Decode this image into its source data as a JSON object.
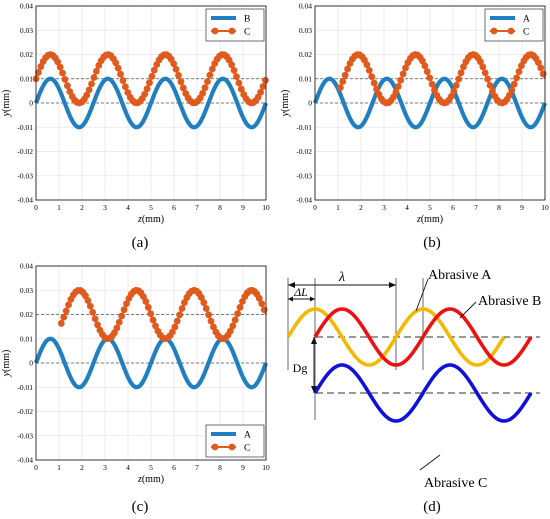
{
  "chart_data": [
    {
      "type": "line",
      "panel_label": "(a)",
      "xlabel": "z(mm)",
      "ylabel": "y(mm)",
      "xlim": [
        0,
        10
      ],
      "ylim": [
        -0.04,
        0.04
      ],
      "xticks": [
        0,
        1,
        2,
        3,
        4,
        5,
        6,
        7,
        8,
        9,
        10
      ],
      "yticks": [
        -0.04,
        -0.03,
        -0.02,
        -0.01,
        0,
        0.01,
        0.02,
        0.03,
        0.04
      ],
      "grid": true,
      "legend_position": "top-right",
      "reference_lines": [
        0.01,
        0
      ],
      "series": [
        {
          "name": "B",
          "color": "#1f7fc1",
          "style": "line",
          "amplitude": 0.01,
          "offset": 0,
          "wavelength": 2.5,
          "phase": 0,
          "x_range": [
            0,
            10
          ]
        },
        {
          "name": "C",
          "color": "#e05a1e",
          "style": "line-dots",
          "amplitude": 0.01,
          "offset": 0.01,
          "wavelength": 2.5,
          "phase": 0,
          "x_range": [
            0,
            10
          ]
        }
      ]
    },
    {
      "type": "line",
      "panel_label": "(b)",
      "xlabel": "z(mm)",
      "ylabel": "y(mm)",
      "xlim": [
        0,
        10
      ],
      "ylim": [
        -0.04,
        0.04
      ],
      "xticks": [
        0,
        1,
        2,
        3,
        4,
        5,
        6,
        7,
        8,
        9,
        10
      ],
      "yticks": [
        -0.04,
        -0.03,
        -0.02,
        -0.01,
        0,
        0.01,
        0.02,
        0.03,
        0.04
      ],
      "grid": true,
      "legend_position": "top-right",
      "reference_lines": [
        0.01,
        0
      ],
      "series": [
        {
          "name": "A",
          "color": "#1f7fc1",
          "style": "line",
          "amplitude": 0.01,
          "offset": 0,
          "wavelength": 2.5,
          "phase": 0,
          "x_range": [
            0,
            10
          ]
        },
        {
          "name": "C",
          "color": "#e05a1e",
          "style": "line-dots",
          "amplitude": 0.01,
          "offset": 0.01,
          "wavelength": 2.5,
          "phase": 1.25,
          "x_range": [
            1.1,
            10
          ]
        }
      ]
    },
    {
      "type": "line",
      "panel_label": "(c)",
      "xlabel": "z(mm)",
      "ylabel": "y(mm)",
      "xlim": [
        0,
        10
      ],
      "ylim": [
        -0.04,
        0.04
      ],
      "xticks": [
        0,
        1,
        2,
        3,
        4,
        5,
        6,
        7,
        8,
        9,
        10
      ],
      "yticks": [
        -0.04,
        -0.03,
        -0.02,
        -0.01,
        0,
        0.01,
        0.02,
        0.03,
        0.04
      ],
      "grid": true,
      "legend_position": "bottom-right",
      "reference_lines": [
        0.02,
        0
      ],
      "series": [
        {
          "name": "A",
          "color": "#1f7fc1",
          "style": "line",
          "amplitude": 0.01,
          "offset": 0,
          "wavelength": 2.5,
          "phase": 0,
          "x_range": [
            0,
            10
          ]
        },
        {
          "name": "C",
          "color": "#e05a1e",
          "style": "line-dots",
          "amplitude": 0.01,
          "offset": 0.02,
          "wavelength": 2.5,
          "phase": 1.25,
          "x_range": [
            1.1,
            10
          ]
        }
      ]
    },
    {
      "type": "line",
      "panel_label": "(d)",
      "annotations": {
        "lambda": "λ",
        "delta_l": "ΔL",
        "dg": "Dg",
        "abrasive_a": "Abrasive A",
        "abrasive_b": "Abrasive B",
        "abrasive_c": "Abrasive C"
      },
      "series": [
        {
          "name": "Abrasive A",
          "color": "#f5b800",
          "cycles": 2,
          "phase_shift": 0,
          "vertical_offset": 0
        },
        {
          "name": "Abrasive B",
          "color": "#ee1111",
          "cycles": 2,
          "phase_shift": 0.25,
          "vertical_offset": 0
        },
        {
          "name": "Abrasive C",
          "color": "#1010dd",
          "cycles": 2,
          "phase_shift": 0.25,
          "vertical_offset": -1
        }
      ]
    }
  ]
}
